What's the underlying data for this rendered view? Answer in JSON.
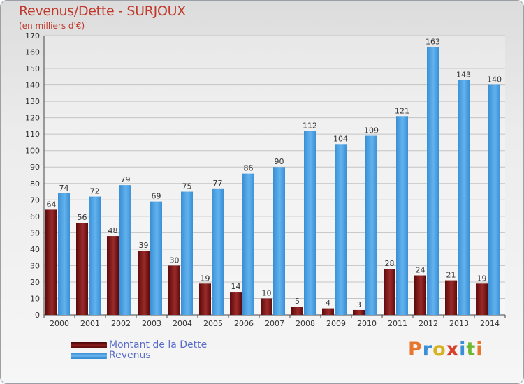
{
  "header": {
    "title": "Revenus/Dette - SURJOUX",
    "subtitle": "(en milliers d'€)"
  },
  "legend": {
    "items": [
      {
        "label": "Montant de la Dette",
        "color": "#7a1212"
      },
      {
        "label": "Revenus",
        "color": "#4ea3e2"
      }
    ]
  },
  "logo": {
    "text": "Proxiti"
  },
  "chart_data": {
    "type": "bar",
    "categories": [
      "2000",
      "2001",
      "2002",
      "2003",
      "2004",
      "2005",
      "2006",
      "2007",
      "2008",
      "2009",
      "2010",
      "2011",
      "2012",
      "2013",
      "2014"
    ],
    "series": [
      {
        "name": "Montant de la Dette",
        "color": "#7a1212",
        "values": [
          64,
          56,
          48,
          39,
          30,
          19,
          14,
          10,
          5,
          4,
          3,
          28,
          24,
          21,
          19
        ]
      },
      {
        "name": "Revenus",
        "color": "#4ea3e2",
        "values": [
          74,
          72,
          79,
          69,
          75,
          77,
          86,
          90,
          112,
          104,
          109,
          121,
          163,
          143,
          140
        ]
      }
    ],
    "title": "Revenus/Dette - SURJOUX",
    "ylabel": "(en milliers d'€)",
    "ylim": [
      0,
      170
    ],
    "yticks": [
      0,
      10,
      20,
      30,
      40,
      50,
      60,
      70,
      80,
      90,
      100,
      110,
      120,
      130,
      140,
      150,
      160,
      170
    ],
    "grid": true,
    "legend_position": "bottom-left"
  }
}
